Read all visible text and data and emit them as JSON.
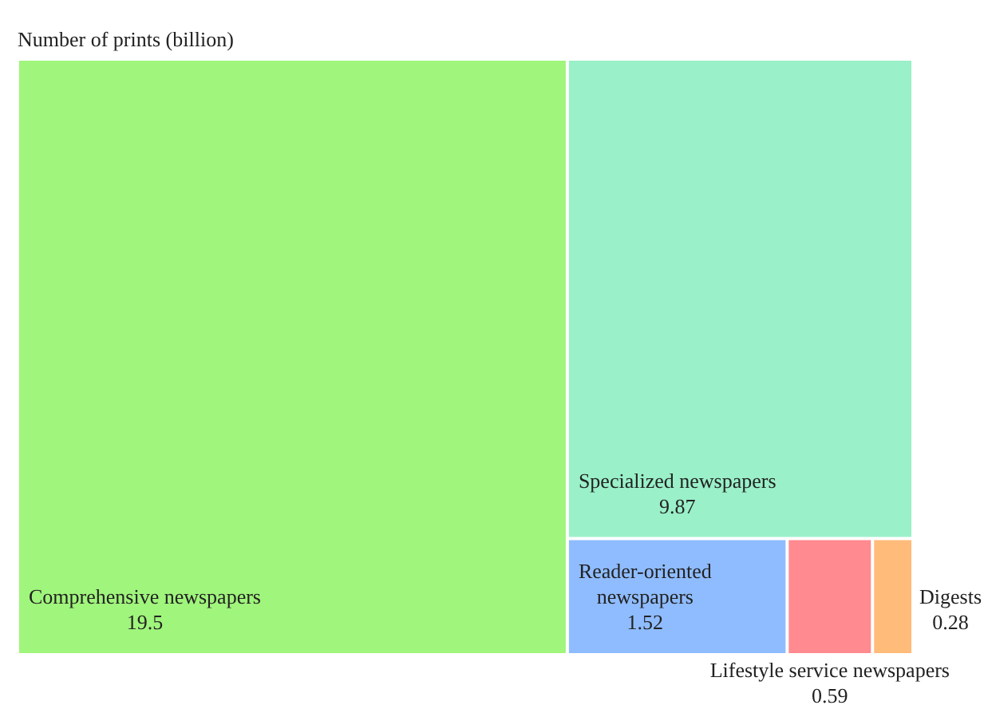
{
  "chart_data": {
    "type": "other",
    "title": "Number of prints (billion)",
    "categories": [
      "Comprehensive newspapers",
      "Specialized newspapers",
      "Reader-oriented newspapers",
      "Lifestyle service newspapers",
      "Digests"
    ],
    "values": [
      19.5,
      9.87,
      1.52,
      0.59,
      0.28
    ],
    "colors": [
      "#a0f57c",
      "#9af0c8",
      "#8fbcff",
      "#ff8a8f",
      "#ffbb7a"
    ],
    "data_labels": true
  }
}
